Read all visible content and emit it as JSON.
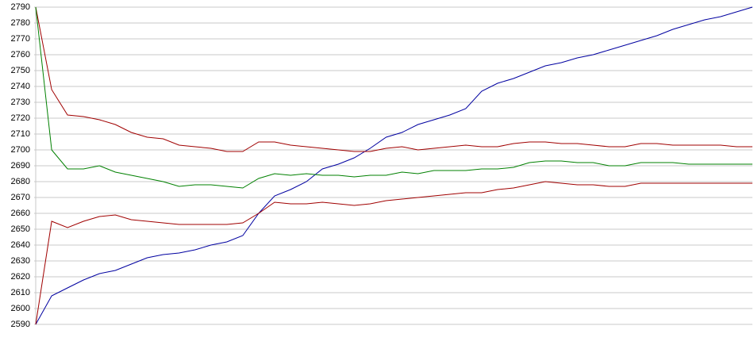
{
  "chart_data": {
    "type": "line",
    "ylim": [
      2590,
      2790
    ],
    "yticks": [
      2590,
      2600,
      2610,
      2620,
      2630,
      2640,
      2650,
      2660,
      2670,
      2680,
      2690,
      2700,
      2710,
      2720,
      2730,
      2740,
      2750,
      2760,
      2770,
      2780,
      2790
    ],
    "grid": true,
    "series": [
      {
        "color": "#0000a0",
        "values": [
          2590,
          2608,
          2613,
          2618,
          2622,
          2624,
          2628,
          2632,
          2634,
          2635,
          2637,
          2640,
          2642,
          2646,
          2660,
          2671,
          2675,
          2680,
          2688,
          2691,
          2695,
          2701,
          2708,
          2711,
          2716,
          2719,
          2722,
          2726,
          2737,
          2742,
          2745,
          2749,
          2753,
          2755,
          2758,
          2760,
          2763,
          2766,
          2769,
          2772,
          2776,
          2779,
          2782,
          2784,
          2787,
          2790
        ]
      },
      {
        "color": "#a00000",
        "values": [
          2790,
          2738,
          2722,
          2721,
          2719,
          2716,
          2711,
          2708,
          2707,
          2703,
          2702,
          2701,
          2699,
          2699,
          2705,
          2705,
          2703,
          2702,
          2701,
          2700,
          2699,
          2699,
          2701,
          2702,
          2700,
          2701,
          2702,
          2703,
          2702,
          2702,
          2704,
          2705,
          2705,
          2704,
          2704,
          2703,
          2702,
          2702,
          2704,
          2704,
          2703,
          2703,
          2703,
          2703,
          2702,
          2702
        ]
      },
      {
        "color": "#008000",
        "values": [
          2790,
          2700,
          2688,
          2688,
          2690,
          2686,
          2684,
          2682,
          2680,
          2677,
          2678,
          2678,
          2677,
          2676,
          2682,
          2685,
          2684,
          2685,
          2684,
          2684,
          2683,
          2684,
          2684,
          2686,
          2685,
          2687,
          2687,
          2687,
          2688,
          2688,
          2689,
          2692,
          2693,
          2693,
          2692,
          2692,
          2690,
          2690,
          2692,
          2692,
          2692,
          2691,
          2691,
          2691,
          2691,
          2691
        ]
      },
      {
        "color": "#a00000",
        "values": [
          2590,
          2655,
          2651,
          2655,
          2658,
          2659,
          2656,
          2655,
          2654,
          2653,
          2653,
          2653,
          2653,
          2654,
          2660,
          2667,
          2666,
          2666,
          2667,
          2666,
          2665,
          2666,
          2668,
          2669,
          2670,
          2671,
          2672,
          2673,
          2673,
          2675,
          2676,
          2678,
          2680,
          2679,
          2678,
          2678,
          2677,
          2677,
          2679,
          2679,
          2679,
          2679,
          2679,
          2679,
          2679,
          2679
        ]
      }
    ]
  }
}
